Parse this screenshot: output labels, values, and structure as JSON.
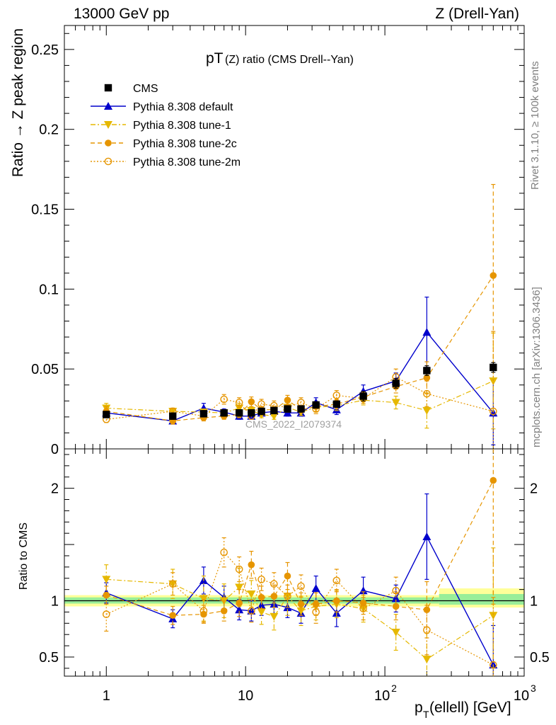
{
  "header": {
    "left": "13000 GeV pp",
    "right": "Z (Drell-Yan)"
  },
  "side": {
    "rivet": "Rivet 3.1.10, ≥ 100k events",
    "mcplots": "mcplots.cern.ch [arXiv:1306.3436]"
  },
  "chart_data": {
    "type": "scatter",
    "title_main": "pT",
    "title_small": "(Z) ratio (CMS Drell--Yan)",
    "watermark": "CMS_2022_I2079374",
    "xlabel_main": "p",
    "xlabel_sub": "T",
    "xlabel_rest": "(ellell) [GeV]",
    "ylabel_top": "Ratio → Z peak region",
    "ylabel_bottom": "Ratio to CMS",
    "xscale": "log",
    "xlim": [
      0.5,
      1000
    ],
    "ylim_top": [
      0,
      0.265
    ],
    "ylim_bottom": [
      0.33,
      2.35
    ],
    "top_yticks": [
      {
        "v": 0,
        "label": "0"
      },
      {
        "v": 0.05,
        "label": "0.05"
      },
      {
        "v": 0.1,
        "label": "0.1"
      },
      {
        "v": 0.15,
        "label": "0.15"
      },
      {
        "v": 0.2,
        "label": "0.2"
      },
      {
        "v": 0.25,
        "label": "0.25"
      }
    ],
    "bottom_yticks": [
      {
        "v": 0.5,
        "label": "0.5"
      },
      {
        "v": 1,
        "label": "1"
      },
      {
        "v": 2,
        "label": "2"
      }
    ],
    "xticks": [
      {
        "v": 1,
        "label": "1",
        "sup": ""
      },
      {
        "v": 10,
        "label": "10",
        "sup": ""
      },
      {
        "v": 100,
        "label": "10",
        "sup": "2"
      },
      {
        "v": 1000,
        "label": "10",
        "sup": "3"
      }
    ],
    "legend_position": "top-left",
    "x": [
      1,
      3,
      5,
      7,
      9,
      11,
      13,
      16,
      20,
      25,
      32,
      45,
      70,
      120,
      200,
      600
    ],
    "series": [
      {
        "name": "CMS",
        "color": "#000000",
        "marker": "square",
        "line": "none",
        "values": [
          0.0215,
          0.0205,
          0.022,
          0.0225,
          0.0225,
          0.0225,
          0.0235,
          0.024,
          0.025,
          0.025,
          0.0275,
          0.028,
          0.033,
          0.041,
          0.049,
          0.051
        ],
        "errors": [
          0.002,
          0.002,
          0.002,
          0.002,
          0.002,
          0.002,
          0.002,
          0.002,
          0.002,
          0.002,
          0.002,
          0.002,
          0.003,
          0.003,
          0.003,
          0.003
        ],
        "ratio": [
          1,
          1,
          1,
          1,
          1,
          1,
          1,
          1,
          1,
          1,
          1,
          1,
          1,
          1,
          1,
          1
        ],
        "ratio_errors": [
          0.03,
          0.03,
          0.03,
          0.03,
          0.03,
          0.03,
          0.03,
          0.03,
          0.03,
          0.03,
          0.03,
          0.03,
          0.04,
          0.05,
          0.06,
          0.06
        ]
      },
      {
        "name": "Pythia 8.308 default",
        "color": "#0000cc",
        "marker": "triangle-up",
        "line": "solid",
        "values": [
          0.0225,
          0.0175,
          0.0255,
          0.023,
          0.0205,
          0.0205,
          0.0225,
          0.0235,
          0.0225,
          0.0225,
          0.029,
          0.0245,
          0.036,
          0.0425,
          0.073,
          0.0225
        ],
        "errors": [
          0.002,
          0.002,
          0.003,
          0.002,
          0.002,
          0.002,
          0.002,
          0.002,
          0.002,
          0.002,
          0.003,
          0.003,
          0.004,
          0.005,
          0.022,
          0.02
        ],
        "ratio": [
          1.07,
          0.84,
          1.18,
          1.03,
          0.92,
          0.91,
          0.96,
          0.97,
          0.94,
          0.89,
          1.11,
          0.89,
          1.09,
          1.02,
          1.57,
          0.43
        ],
        "ratio_errors": [
          0.09,
          0.08,
          0.12,
          0.1,
          0.09,
          0.09,
          0.09,
          0.09,
          0.09,
          0.09,
          0.11,
          0.12,
          0.12,
          0.12,
          0.38,
          0.35
        ]
      },
      {
        "name": "Pythia 8.308 tune-1",
        "color": "#e6b800",
        "marker": "triangle-down",
        "line": "dashdot",
        "values": [
          0.0255,
          0.0235,
          0.023,
          0.0225,
          0.0255,
          0.024,
          0.0215,
          0.0205,
          0.026,
          0.023,
          0.026,
          0.027,
          0.0305,
          0.029,
          0.024,
          0.0425
        ],
        "errors": [
          0.003,
          0.002,
          0.002,
          0.002,
          0.003,
          0.002,
          0.002,
          0.002,
          0.003,
          0.002,
          0.003,
          0.003,
          0.003,
          0.004,
          0.011,
          0.03
        ],
        "ratio": [
          1.19,
          1.15,
          1.02,
          1.0,
          1.12,
          1.06,
          0.9,
          0.86,
          1.04,
          0.91,
          0.95,
          0.97,
          0.93,
          0.72,
          0.48,
          0.87
        ],
        "ratio_errors": [
          0.13,
          0.13,
          0.2,
          0.15,
          0.17,
          0.12,
          0.11,
          0.12,
          0.17,
          0.13,
          0.12,
          0.12,
          0.12,
          0.16,
          0.23,
          0.6
        ]
      },
      {
        "name": "Pythia 8.308 tune-2c",
        "color": "#e69500",
        "marker": "circle",
        "line": "dashed",
        "values": [
          0.0235,
          0.0175,
          0.0195,
          0.0205,
          0.0215,
          0.0295,
          0.0245,
          0.0245,
          0.0305,
          0.0245,
          0.0265,
          0.028,
          0.0325,
          0.039,
          0.0445,
          0.1085
        ],
        "errors": [
          0.003,
          0.002,
          0.002,
          0.002,
          0.002,
          0.003,
          0.002,
          0.002,
          0.003,
          0.002,
          0.003,
          0.003,
          0.003,
          0.004,
          0.01,
          0.057
        ],
        "ratio": [
          1.05,
          0.87,
          0.88,
          0.91,
          0.98,
          1.32,
          1.03,
          1.04,
          1.22,
          0.97,
          0.97,
          1.0,
          0.98,
          0.95,
          0.92,
          2.07
        ],
        "ratio_errors": [
          0.08,
          0.08,
          0.08,
          0.09,
          0.12,
          0.12,
          0.1,
          0.1,
          0.12,
          0.1,
          0.1,
          0.1,
          0.1,
          0.12,
          0.25,
          1.1
        ]
      },
      {
        "name": "Pythia 8.308 tune-2m",
        "color": "#e69500",
        "marker": "circle-open",
        "line": "dotted",
        "values": [
          0.0185,
          0.0235,
          0.0205,
          0.031,
          0.029,
          0.0205,
          0.028,
          0.027,
          0.026,
          0.029,
          0.025,
          0.0335,
          0.0315,
          0.045,
          0.0345,
          0.0235
        ],
        "errors": [
          0.002,
          0.002,
          0.002,
          0.003,
          0.003,
          0.002,
          0.003,
          0.003,
          0.003,
          0.003,
          0.003,
          0.003,
          0.003,
          0.005,
          0.008,
          0.05
        ],
        "ratio": [
          0.88,
          1.15,
          0.91,
          1.43,
          1.28,
          0.91,
          1.19,
          1.15,
          1.04,
          1.13,
          0.9,
          1.18,
          0.93,
          1.09,
          0.74,
          0.43
        ],
        "ratio_errors": [
          0.15,
          0.1,
          0.1,
          0.13,
          0.11,
          0.1,
          0.1,
          0.1,
          0.1,
          0.1,
          0.1,
          0.1,
          0.1,
          0.12,
          0.22,
          0.6
        ]
      }
    ]
  }
}
